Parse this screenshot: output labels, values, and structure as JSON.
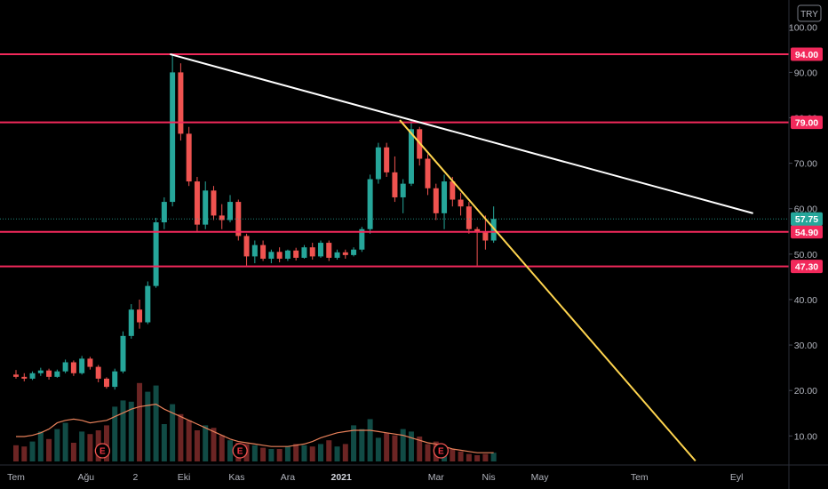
{
  "currency": "TRY",
  "colors": {
    "background": "#000000",
    "up": "#26a69a",
    "down": "#ef5350",
    "level_line": "#f2295b",
    "trend_white": "#ffffff",
    "trend_yellow": "#ffd54f",
    "volume_ma": "#e8815a",
    "last_price_bg": "#26a69a",
    "axis_text": "#b2b5be"
  },
  "chart_data": {
    "type": "candlestick",
    "y_ticks": [
      "100.00",
      "90.00",
      "80.00",
      "70.00",
      "60.00",
      "50.00",
      "40.00",
      "30.00",
      "20.00",
      "10.00"
    ],
    "y_tick_values": [
      100,
      90,
      80,
      70,
      60,
      50,
      40,
      30,
      20,
      10
    ],
    "ylim": [
      4.5,
      104.5
    ],
    "x_labels": [
      {
        "text": "Tem",
        "week": 0,
        "bold": false
      },
      {
        "text": "Ağu",
        "week": 8.5,
        "bold": false
      },
      {
        "text": "2",
        "week": 14.5,
        "bold": false
      },
      {
        "text": "Eki",
        "week": 20.4,
        "bold": false
      },
      {
        "text": "Kas",
        "week": 26.8,
        "bold": false
      },
      {
        "text": "Ara",
        "week": 33,
        "bold": false
      },
      {
        "text": "2021",
        "week": 39.5,
        "bold": true
      },
      {
        "text": "Mar",
        "week": 51,
        "bold": false
      },
      {
        "text": "Nis",
        "week": 57.4,
        "bold": false
      },
      {
        "text": "May",
        "week": 63.6,
        "bold": false
      },
      {
        "text": "Tem",
        "week": 75.7,
        "bold": false
      },
      {
        "text": "Eyl",
        "week": 87.5,
        "bold": false
      }
    ],
    "horizontal_levels": [
      {
        "label": "94.00",
        "value": 94.0
      },
      {
        "label": "79.00",
        "value": 79.0
      },
      {
        "label": "54.90",
        "value": 54.9
      },
      {
        "label": "47.30",
        "value": 47.3
      }
    ],
    "last_price": {
      "label": "57.75",
      "value": 57.75
    },
    "trendlines": [
      {
        "name": "white",
        "start": [
          18.7,
          94.0
        ],
        "end": [
          89.5,
          59.0
        ]
      },
      {
        "name": "yellow",
        "start": [
          46.6,
          79.5
        ],
        "end": [
          82.5,
          4.5
        ]
      }
    ],
    "earnings_markers": [
      {
        "week": 10.5,
        "label": "E"
      },
      {
        "week": 27.2,
        "label": "E"
      },
      {
        "week": 51.6,
        "label": "E"
      }
    ],
    "candles": [
      [
        23.5,
        24.5,
        22.6,
        23.0
      ],
      [
        23.0,
        23.8,
        22.0,
        22.6
      ],
      [
        22.6,
        24.2,
        22.3,
        23.8
      ],
      [
        23.8,
        25.0,
        23.2,
        24.4
      ],
      [
        24.4,
        24.8,
        22.4,
        23.0
      ],
      [
        23.0,
        24.6,
        22.8,
        24.2
      ],
      [
        24.2,
        26.8,
        23.8,
        26.2
      ],
      [
        26.2,
        26.6,
        23.2,
        23.8
      ],
      [
        23.8,
        27.6,
        23.5,
        27.0
      ],
      [
        27.0,
        27.4,
        24.6,
        25.2
      ],
      [
        25.2,
        25.6,
        21.8,
        22.6
      ],
      [
        22.6,
        22.9,
        20.4,
        20.8
      ],
      [
        20.8,
        24.8,
        20.2,
        24.2
      ],
      [
        24.2,
        33.0,
        23.8,
        32.0
      ],
      [
        32.0,
        39.0,
        31.4,
        37.8
      ],
      [
        37.8,
        40.0,
        33.6,
        35.0
      ],
      [
        35.0,
        44.0,
        34.6,
        43.0
      ],
      [
        43.0,
        58.0,
        42.6,
        57.0
      ],
      [
        57.0,
        62.5,
        55.5,
        61.5
      ],
      [
        61.5,
        94.0,
        60.5,
        90.0
      ],
      [
        90.0,
        92.0,
        75.0,
        76.5
      ],
      [
        76.5,
        78.0,
        65.0,
        66.0
      ],
      [
        66.0,
        67.0,
        55.0,
        56.5
      ],
      [
        56.5,
        66.0,
        55.5,
        64.0
      ],
      [
        64.0,
        65.0,
        57.5,
        58.5
      ],
      [
        58.5,
        61.0,
        55.5,
        57.5
      ],
      [
        57.5,
        63.0,
        57.0,
        61.5
      ],
      [
        61.5,
        62.0,
        53.0,
        54.0
      ],
      [
        54.0,
        54.5,
        47.5,
        49.5
      ],
      [
        49.5,
        53.0,
        48.0,
        52.0
      ],
      [
        52.0,
        53.0,
        48.5,
        49.0
      ],
      [
        49.0,
        51.0,
        48.0,
        50.5
      ],
      [
        50.5,
        51.5,
        48.2,
        49.0
      ],
      [
        49.0,
        51.0,
        48.5,
        50.8
      ],
      [
        50.8,
        51.4,
        48.6,
        49.2
      ],
      [
        49.2,
        52.0,
        49.0,
        51.5
      ],
      [
        51.5,
        52.5,
        48.8,
        49.5
      ],
      [
        49.5,
        53.0,
        49.2,
        52.5
      ],
      [
        52.5,
        53.0,
        48.5,
        49.2
      ],
      [
        49.2,
        51.0,
        48.8,
        50.4
      ],
      [
        50.4,
        51.0,
        49.0,
        49.8
      ],
      [
        49.8,
        51.5,
        49.5,
        51.0
      ],
      [
        51.0,
        56.0,
        50.5,
        55.5
      ],
      [
        55.5,
        67.5,
        54.5,
        66.5
      ],
      [
        66.5,
        74.5,
        65.5,
        73.5
      ],
      [
        73.5,
        74.5,
        67.0,
        68.0
      ],
      [
        68.0,
        71.5,
        61.5,
        62.5
      ],
      [
        62.5,
        66.5,
        59.0,
        65.5
      ],
      [
        65.5,
        79.5,
        65.0,
        77.5
      ],
      [
        77.5,
        78.0,
        69.5,
        71.0
      ],
      [
        71.0,
        72.0,
        63.0,
        64.5
      ],
      [
        64.5,
        65.5,
        57.5,
        59.0
      ],
      [
        59.0,
        67.5,
        55.5,
        66.0
      ],
      [
        66.0,
        67.0,
        60.5,
        62.0
      ],
      [
        62.0,
        63.5,
        58.5,
        60.5
      ],
      [
        60.5,
        61.5,
        54.5,
        55.5
      ],
      [
        55.5,
        56.0,
        47.5,
        55.0
      ],
      [
        55.0,
        58.5,
        51.0,
        53.0
      ],
      [
        53.0,
        60.5,
        52.5,
        57.75
      ]
    ],
    "volumes": [
      1.3,
      1.2,
      1.6,
      2.4,
      1.8,
      2.6,
      3.1,
      1.5,
      2.4,
      2.2,
      2.5,
      2.9,
      4.4,
      4.9,
      4.8,
      6.3,
      5.6,
      6.1,
      3.0,
      4.6,
      3.8,
      3.3,
      2.5,
      2.9,
      2.7,
      2.1,
      1.7,
      1.5,
      1.4,
      1.3,
      1.1,
      1.0,
      1.0,
      1.2,
      1.4,
      1.3,
      1.2,
      1.4,
      1.7,
      1.2,
      1.4,
      2.9,
      2.6,
      3.4,
      1.9,
      2.3,
      2.1,
      2.6,
      2.4,
      2.0,
      1.4,
      1.6,
      1.2,
      1.0,
      0.8,
      0.6,
      0.5,
      0.6,
      0.7
    ],
    "volume_ma": [
      2.0,
      2.0,
      2.1,
      2.3,
      2.6,
      3.1,
      3.3,
      3.4,
      3.3,
      3.1,
      3.2,
      3.3,
      3.6,
      3.9,
      4.2,
      4.4,
      4.5,
      4.6,
      4.2,
      3.9,
      3.6,
      3.3,
      3.0,
      2.7,
      2.4,
      2.1,
      1.8,
      1.6,
      1.5,
      1.4,
      1.3,
      1.2,
      1.2,
      1.2,
      1.3,
      1.4,
      1.6,
      1.9,
      2.1,
      2.3,
      2.4,
      2.5,
      2.5,
      2.5,
      2.4,
      2.3,
      2.2,
      2.1,
      1.9,
      1.7,
      1.5,
      1.4,
      1.2,
      1.0,
      0.9,
      0.8,
      0.7,
      0.7,
      0.7
    ]
  }
}
